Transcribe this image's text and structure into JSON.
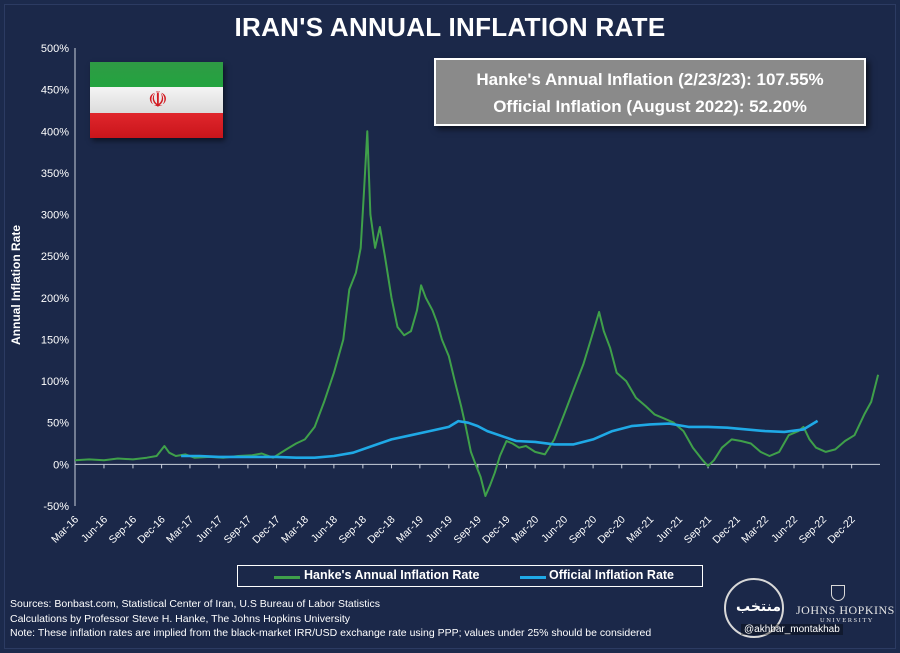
{
  "chart_data": {
    "type": "line",
    "title": "IRAN'S ANNUAL INFLATION RATE",
    "ylabel": "Annual Inflation Rate",
    "xlabel": "",
    "ylim": [
      -50,
      500
    ],
    "yticks": [
      -50,
      0,
      50,
      100,
      150,
      200,
      250,
      300,
      350,
      400,
      450,
      500
    ],
    "ytick_labels": [
      "-50%",
      "0%",
      "50%",
      "100%",
      "150%",
      "200%",
      "250%",
      "300%",
      "350%",
      "400%",
      "450%",
      "500%"
    ],
    "xlim": [
      "2016-03",
      "2023-03"
    ],
    "xtick_labels": [
      "Mar-16",
      "Jun-16",
      "Sep-16",
      "Dec-16",
      "Mar-17",
      "Jun-17",
      "Sep-17",
      "Dec-17",
      "Mar-18",
      "Jun-18",
      "Sep-18",
      "Dec-18",
      "Mar-19",
      "Jun-19",
      "Sep-19",
      "Dec-19",
      "Mar-20",
      "Jun-20",
      "Sep-20",
      "Dec-20",
      "Mar-21",
      "Jun-21",
      "Sep-21",
      "Dec-21",
      "Mar-22",
      "Jun-22",
      "Sep-22",
      "Dec-22"
    ],
    "grid": false,
    "legend_position": "bottom",
    "series": [
      {
        "name": "Hanke's Annual Inflation Rate",
        "color": "#3fa04a",
        "points": [
          [
            "2016-03-01",
            5
          ],
          [
            "2016-04-15",
            6
          ],
          [
            "2016-06-01",
            5
          ],
          [
            "2016-07-15",
            7
          ],
          [
            "2016-09-01",
            6
          ],
          [
            "2016-10-15",
            8
          ],
          [
            "2016-11-15",
            10
          ],
          [
            "2016-12-10",
            22
          ],
          [
            "2016-12-25",
            14
          ],
          [
            "2017-01-15",
            10
          ],
          [
            "2017-02-15",
            12
          ],
          [
            "2017-03-15",
            8
          ],
          [
            "2017-05-01",
            9
          ],
          [
            "2017-06-15",
            8
          ],
          [
            "2017-08-01",
            10
          ],
          [
            "2017-09-15",
            11
          ],
          [
            "2017-10-15",
            13
          ],
          [
            "2017-11-20",
            8
          ],
          [
            "2018-01-01",
            18
          ],
          [
            "2018-02-01",
            25
          ],
          [
            "2018-03-01",
            30
          ],
          [
            "2018-04-01",
            45
          ],
          [
            "2018-05-01",
            75
          ],
          [
            "2018-06-01",
            110
          ],
          [
            "2018-07-01",
            150
          ],
          [
            "2018-07-20",
            210
          ],
          [
            "2018-08-10",
            230
          ],
          [
            "2018-08-25",
            260
          ],
          [
            "2018-09-05",
            330
          ],
          [
            "2018-09-15",
            400
          ],
          [
            "2018-09-25",
            300
          ],
          [
            "2018-10-10",
            260
          ],
          [
            "2018-10-25",
            285
          ],
          [
            "2018-11-10",
            250
          ],
          [
            "2018-12-01",
            200
          ],
          [
            "2018-12-20",
            165
          ],
          [
            "2019-01-10",
            155
          ],
          [
            "2019-02-01",
            160
          ],
          [
            "2019-02-20",
            185
          ],
          [
            "2019-03-05",
            215
          ],
          [
            "2019-03-20",
            200
          ],
          [
            "2019-04-10",
            185
          ],
          [
            "2019-04-25",
            170
          ],
          [
            "2019-05-10",
            150
          ],
          [
            "2019-06-01",
            130
          ],
          [
            "2019-06-20",
            100
          ],
          [
            "2019-07-10",
            70
          ],
          [
            "2019-07-25",
            45
          ],
          [
            "2019-08-10",
            15
          ],
          [
            "2019-08-25",
            0
          ],
          [
            "2019-09-10",
            -15
          ],
          [
            "2019-09-25",
            -38
          ],
          [
            "2019-10-10",
            -25
          ],
          [
            "2019-10-25",
            -10
          ],
          [
            "2019-11-10",
            10
          ],
          [
            "2019-12-01",
            28
          ],
          [
            "2019-12-20",
            25
          ],
          [
            "2020-01-10",
            20
          ],
          [
            "2020-02-01",
            22
          ],
          [
            "2020-03-01",
            15
          ],
          [
            "2020-04-01",
            12
          ],
          [
            "2020-05-01",
            30
          ],
          [
            "2020-06-01",
            60
          ],
          [
            "2020-07-01",
            90
          ],
          [
            "2020-08-01",
            120
          ],
          [
            "2020-08-25",
            150
          ],
          [
            "2020-09-10",
            170
          ],
          [
            "2020-09-20",
            183
          ],
          [
            "2020-10-05",
            160
          ],
          [
            "2020-10-25",
            140
          ],
          [
            "2020-11-15",
            110
          ],
          [
            "2020-12-15",
            100
          ],
          [
            "2021-01-15",
            80
          ],
          [
            "2021-02-15",
            70
          ],
          [
            "2021-03-15",
            60
          ],
          [
            "2021-04-15",
            55
          ],
          [
            "2021-05-15",
            50
          ],
          [
            "2021-06-15",
            40
          ],
          [
            "2021-07-15",
            20
          ],
          [
            "2021-08-15",
            5
          ],
          [
            "2021-09-01",
            -2
          ],
          [
            "2021-09-20",
            5
          ],
          [
            "2021-10-15",
            20
          ],
          [
            "2021-11-15",
            30
          ],
          [
            "2021-12-15",
            28
          ],
          [
            "2022-01-15",
            25
          ],
          [
            "2022-02-15",
            15
          ],
          [
            "2022-03-15",
            10
          ],
          [
            "2022-04-15",
            15
          ],
          [
            "2022-05-15",
            35
          ],
          [
            "2022-06-15",
            40
          ],
          [
            "2022-07-01",
            45
          ],
          [
            "2022-07-20",
            30
          ],
          [
            "2022-08-10",
            20
          ],
          [
            "2022-09-10",
            15
          ],
          [
            "2022-10-10",
            18
          ],
          [
            "2022-11-10",
            28
          ],
          [
            "2022-12-10",
            35
          ],
          [
            "2023-01-10",
            60
          ],
          [
            "2023-02-01",
            75
          ],
          [
            "2023-02-23",
            107.55
          ]
        ]
      },
      {
        "name": "Official Inflation Rate",
        "color": "#1fa9e6",
        "points": [
          [
            "2017-02-01",
            10
          ],
          [
            "2017-04-01",
            10
          ],
          [
            "2017-06-01",
            9
          ],
          [
            "2017-08-01",
            9
          ],
          [
            "2017-10-01",
            9
          ],
          [
            "2017-12-01",
            9
          ],
          [
            "2018-02-01",
            8
          ],
          [
            "2018-04-01",
            8
          ],
          [
            "2018-06-01",
            10
          ],
          [
            "2018-08-01",
            14
          ],
          [
            "2018-10-01",
            22
          ],
          [
            "2018-12-01",
            30
          ],
          [
            "2019-02-01",
            35
          ],
          [
            "2019-04-01",
            40
          ],
          [
            "2019-06-01",
            45
          ],
          [
            "2019-07-01",
            52
          ],
          [
            "2019-08-01",
            50
          ],
          [
            "2019-09-01",
            46
          ],
          [
            "2019-10-01",
            40
          ],
          [
            "2019-12-01",
            32
          ],
          [
            "2020-01-01",
            28
          ],
          [
            "2020-03-01",
            27
          ],
          [
            "2020-05-01",
            24
          ],
          [
            "2020-07-01",
            24
          ],
          [
            "2020-09-01",
            30
          ],
          [
            "2020-11-01",
            40
          ],
          [
            "2021-01-01",
            46
          ],
          [
            "2021-03-01",
            48
          ],
          [
            "2021-05-01",
            49
          ],
          [
            "2021-07-01",
            45
          ],
          [
            "2021-09-01",
            45
          ],
          [
            "2021-11-01",
            44
          ],
          [
            "2022-01-01",
            42
          ],
          [
            "2022-03-01",
            40
          ],
          [
            "2022-05-01",
            39
          ],
          [
            "2022-07-01",
            42
          ],
          [
            "2022-08-15",
            52.2
          ]
        ]
      }
    ]
  },
  "infobox": {
    "line1": "Hanke's Annual Inflation (2/23/23): 107.55%",
    "line2": "Official Inflation (August 2022): 52.20%"
  },
  "flag": {
    "icon": "iran-flag-icon",
    "colors": [
      "#2f9a45",
      "#f4f4f4",
      "#d31b22"
    ]
  },
  "sources": {
    "line1": "Sources: Bonbast.com, Statistical Center of Iran, U.S Bureau of Labor Statistics",
    "line2": "Calculations by Professor Steve H. Hanke, The Johns Hopkins University",
    "line3": "Note: These inflation rates are implied from the black-market IRR/USD exchange rate using PPP; values under 25% should be considered"
  },
  "watermark": {
    "handle": "@akhbar_montakhab",
    "text": "منتخب"
  },
  "jhu_logo": {
    "name": "JOHNS HOPKINS",
    "sub": "UNIVERSITY"
  }
}
